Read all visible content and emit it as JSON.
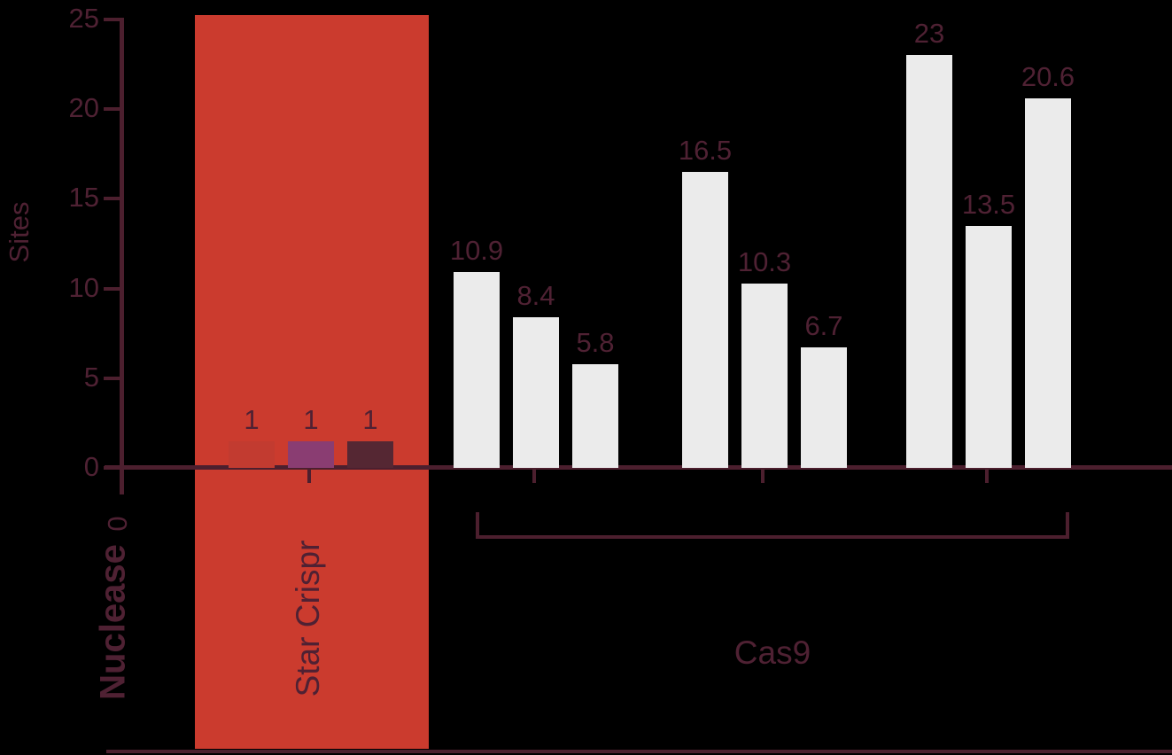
{
  "chart_data": {
    "type": "bar",
    "title": "",
    "ylabel": "Sites",
    "xlabel": "Nuclease",
    "ylim": [
      0,
      25
    ],
    "yticks": [
      0,
      5,
      10,
      15,
      20,
      25
    ],
    "x_origin_tick_label": "0",
    "grid": false,
    "legend": "none",
    "groups": [
      {
        "category": "Star Crispr",
        "highlighted": true,
        "bars": [
          {
            "value": 1,
            "label": "1",
            "color": "#c23b30"
          },
          {
            "value": 1,
            "label": "1",
            "color": "#8a3d72"
          },
          {
            "value": 1,
            "label": "1",
            "color": "#552733"
          }
        ]
      },
      {
        "category": "Cas9",
        "highlighted": false,
        "bars": [
          {
            "value": 10.9,
            "label": "10.9",
            "color": "#ebebeb"
          },
          {
            "value": 8.4,
            "label": "8.4",
            "color": "#ebebeb"
          },
          {
            "value": 5.8,
            "label": "5.8",
            "color": "#ebebeb"
          }
        ]
      },
      {
        "category": "Cas9",
        "highlighted": false,
        "bars": [
          {
            "value": 16.5,
            "label": "16.5",
            "color": "#ebebeb"
          },
          {
            "value": 10.3,
            "label": "10.3",
            "color": "#ebebeb"
          },
          {
            "value": 6.7,
            "label": "6.7",
            "color": "#ebebeb"
          }
        ]
      },
      {
        "category": "Cas9",
        "highlighted": false,
        "bars": [
          {
            "value": 23,
            "label": "23",
            "color": "#ebebeb"
          },
          {
            "value": 13.5,
            "label": "13.5",
            "color": "#ebebeb"
          },
          {
            "value": 20.6,
            "label": "20.6",
            "color": "#ebebeb"
          }
        ]
      }
    ],
    "bracket": {
      "label": "Cas9",
      "from_group": 1,
      "to_group": 3
    },
    "highlight_band": {
      "group": "Star Crispr",
      "color": "#cb3b2e"
    },
    "colors": {
      "background": "#000000",
      "axis": "#4c1f2e",
      "text": "#4f2133",
      "band": "#cb3b2e",
      "default_bar": "#ebebeb"
    }
  }
}
